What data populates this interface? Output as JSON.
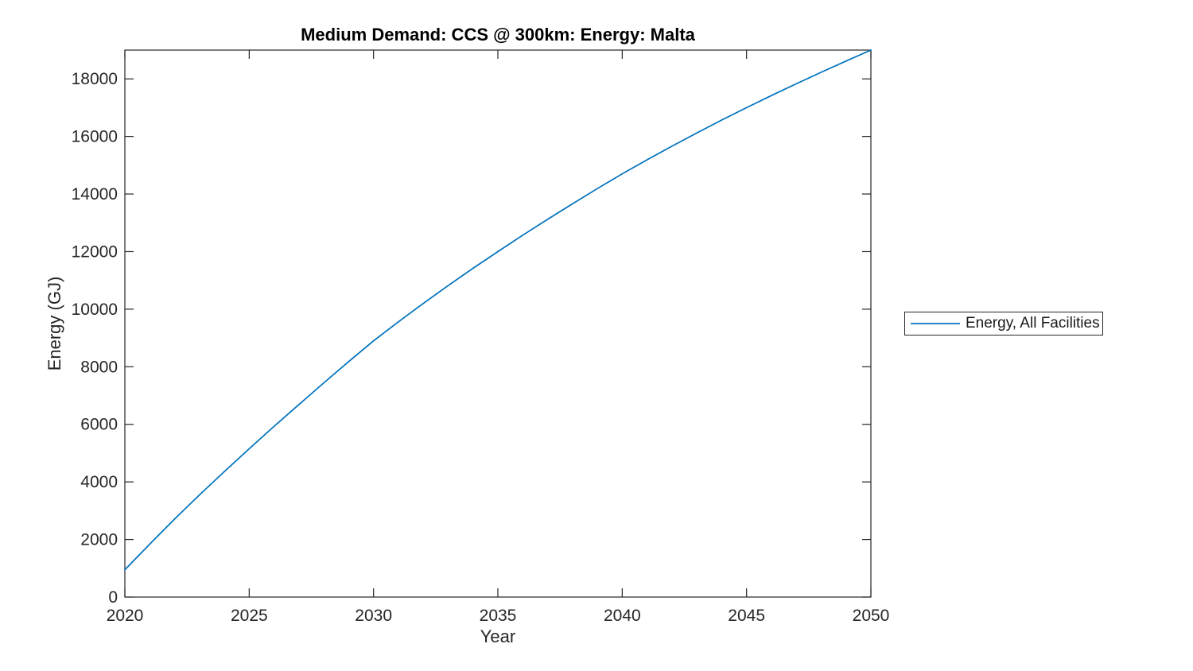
{
  "chart_data": {
    "type": "line",
    "title": "Medium Demand: CCS @ 300km: Energy: Malta",
    "xlabel": "Year",
    "ylabel": "Energy (GJ)",
    "xlim": [
      2020,
      2050
    ],
    "ylim": [
      0,
      19000
    ],
    "x_ticks": [
      2020,
      2025,
      2030,
      2035,
      2040,
      2045,
      2050
    ],
    "y_ticks": [
      0,
      2000,
      4000,
      6000,
      8000,
      10000,
      12000,
      14000,
      16000,
      18000
    ],
    "grid": false,
    "box": true,
    "tick_direction": "in",
    "legend_position": "outside-right",
    "axis_color": "#262626",
    "background_color": "#ffffff",
    "x": [
      2020,
      2021,
      2022,
      2023,
      2024,
      2025,
      2026,
      2027,
      2028,
      2029,
      2030,
      2031,
      2032,
      2033,
      2034,
      2035,
      2036,
      2037,
      2038,
      2039,
      2040,
      2041,
      2042,
      2043,
      2044,
      2045,
      2046,
      2047,
      2048,
      2049,
      2050
    ],
    "series": [
      {
        "name": "Energy, All Facilities",
        "color": "#0072BD",
        "values": [
          950,
          1840,
          2710,
          3550,
          4360,
          5150,
          5930,
          6690,
          7440,
          8180,
          8900,
          9560,
          10200,
          10820,
          11420,
          12000,
          12570,
          13120,
          13660,
          14190,
          14700,
          15190,
          15660,
          16120,
          16570,
          17000,
          17420,
          17830,
          18230,
          18620,
          19000
        ]
      }
    ]
  }
}
